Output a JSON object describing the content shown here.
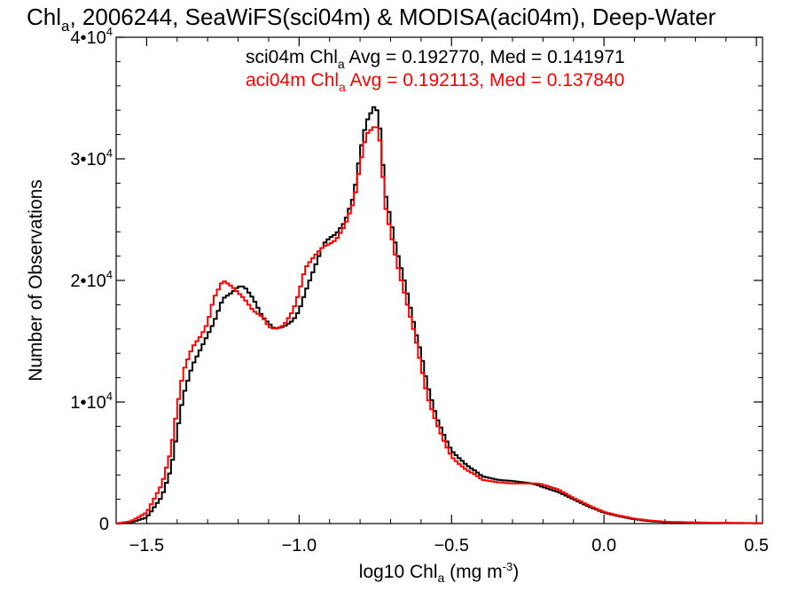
{
  "chart_data": {
    "type": "line",
    "title": {
      "pre": "Chl",
      "sub": "a",
      "post": ", 2006244, SeaWiFS(sci04m) & MODISA(aci04m), Deep-Water"
    },
    "xlabel": {
      "pre": "log10 Chl",
      "sub": "a",
      "mid": " (mg m",
      "sup": "-3",
      "post": ")"
    },
    "ylabel": "Number of Observations",
    "xlim": [
      -1.6,
      0.52
    ],
    "ylim": [
      0,
      40000
    ],
    "x_ticks": [
      {
        "value": -1.5,
        "label": "−1.5"
      },
      {
        "value": -1.0,
        "label": "−1.0"
      },
      {
        "value": -0.5,
        "label": "−0.5"
      },
      {
        "value": 0.0,
        "label": "0.0"
      },
      {
        "value": 0.5,
        "label": "0.5"
      }
    ],
    "y_ticks": [
      {
        "value": 0,
        "mant": "0",
        "exp": ""
      },
      {
        "value": 10000,
        "mant": "1•10",
        "exp": "4"
      },
      {
        "value": 20000,
        "mant": "2•10",
        "exp": "4"
      },
      {
        "value": 30000,
        "mant": "3•10",
        "exp": "4"
      },
      {
        "value": 40000,
        "mant": "4•10",
        "exp": "4"
      }
    ],
    "legend": [
      {
        "pre": "sci04m Chl",
        "sub": "a",
        "post": " Avg = 0.192770, Med = 0.141971",
        "color": "#000000"
      },
      {
        "pre": "aci04m Chl",
        "sub": "a",
        "post": " Avg = 0.192113, Med = 0.137840",
        "color": "#ff0000"
      }
    ],
    "series": [
      {
        "color": "#000000",
        "x": [
          -1.6,
          -1.55,
          -1.5,
          -1.45,
          -1.42,
          -1.4,
          -1.38,
          -1.35,
          -1.32,
          -1.3,
          -1.28,
          -1.25,
          -1.22,
          -1.2,
          -1.18,
          -1.15,
          -1.12,
          -1.1,
          -1.08,
          -1.05,
          -1.02,
          -1.0,
          -0.98,
          -0.95,
          -0.92,
          -0.9,
          -0.88,
          -0.85,
          -0.82,
          -0.8,
          -0.78,
          -0.76,
          -0.75,
          -0.74,
          -0.73,
          -0.72,
          -0.7,
          -0.68,
          -0.65,
          -0.62,
          -0.6,
          -0.58,
          -0.55,
          -0.52,
          -0.5,
          -0.48,
          -0.45,
          -0.42,
          -0.4,
          -0.35,
          -0.3,
          -0.25,
          -0.22,
          -0.2,
          -0.15,
          -0.1,
          -0.05,
          0.0,
          0.05,
          0.1,
          0.15,
          0.2,
          0.3,
          0.4,
          0.5,
          0.52
        ],
        "y": [
          0,
          100,
          500,
          2200,
          4500,
          7500,
          10500,
          13000,
          14500,
          15500,
          16500,
          18500,
          19000,
          19500,
          19500,
          18500,
          17000,
          16500,
          16000,
          16200,
          16700,
          17500,
          19000,
          21000,
          23000,
          23500,
          23800,
          24800,
          27000,
          30500,
          33000,
          34000,
          34500,
          33500,
          31500,
          27500,
          25000,
          22500,
          19500,
          16000,
          14000,
          11500,
          8800,
          7000,
          6000,
          5500,
          4800,
          4300,
          3900,
          3600,
          3500,
          3350,
          3200,
          3000,
          2600,
          2000,
          1400,
          900,
          600,
          350,
          200,
          120,
          80,
          50,
          30,
          30
        ]
      },
      {
        "color": "#ff0000",
        "x": [
          -1.6,
          -1.55,
          -1.5,
          -1.45,
          -1.42,
          -1.4,
          -1.38,
          -1.35,
          -1.32,
          -1.3,
          -1.28,
          -1.25,
          -1.22,
          -1.2,
          -1.18,
          -1.15,
          -1.12,
          -1.1,
          -1.08,
          -1.05,
          -1.02,
          -1.0,
          -0.98,
          -0.95,
          -0.92,
          -0.9,
          -0.88,
          -0.85,
          -0.82,
          -0.8,
          -0.78,
          -0.76,
          -0.75,
          -0.74,
          -0.73,
          -0.72,
          -0.7,
          -0.68,
          -0.65,
          -0.62,
          -0.6,
          -0.58,
          -0.55,
          -0.52,
          -0.5,
          -0.48,
          -0.45,
          -0.42,
          -0.4,
          -0.35,
          -0.3,
          -0.25,
          -0.22,
          -0.2,
          -0.15,
          -0.1,
          -0.05,
          0.0,
          0.05,
          0.1,
          0.15,
          0.2,
          0.3,
          0.4,
          0.5,
          0.52
        ],
        "y": [
          0,
          200,
          900,
          3200,
          6000,
          9500,
          12500,
          14500,
          15500,
          16500,
          18500,
          20000,
          19500,
          19000,
          18500,
          17500,
          17000,
          16200,
          16000,
          16300,
          17500,
          19000,
          21000,
          22000,
          22800,
          23000,
          23300,
          24500,
          26500,
          29500,
          32000,
          32500,
          32700,
          32500,
          30500,
          26500,
          24000,
          21500,
          18500,
          15500,
          13000,
          10500,
          8300,
          6500,
          5500,
          5000,
          4400,
          4000,
          3600,
          3400,
          3300,
          3300,
          3300,
          3200,
          2800,
          2100,
          1500,
          950,
          650,
          400,
          250,
          150,
          90,
          60,
          40,
          40
        ]
      }
    ]
  }
}
